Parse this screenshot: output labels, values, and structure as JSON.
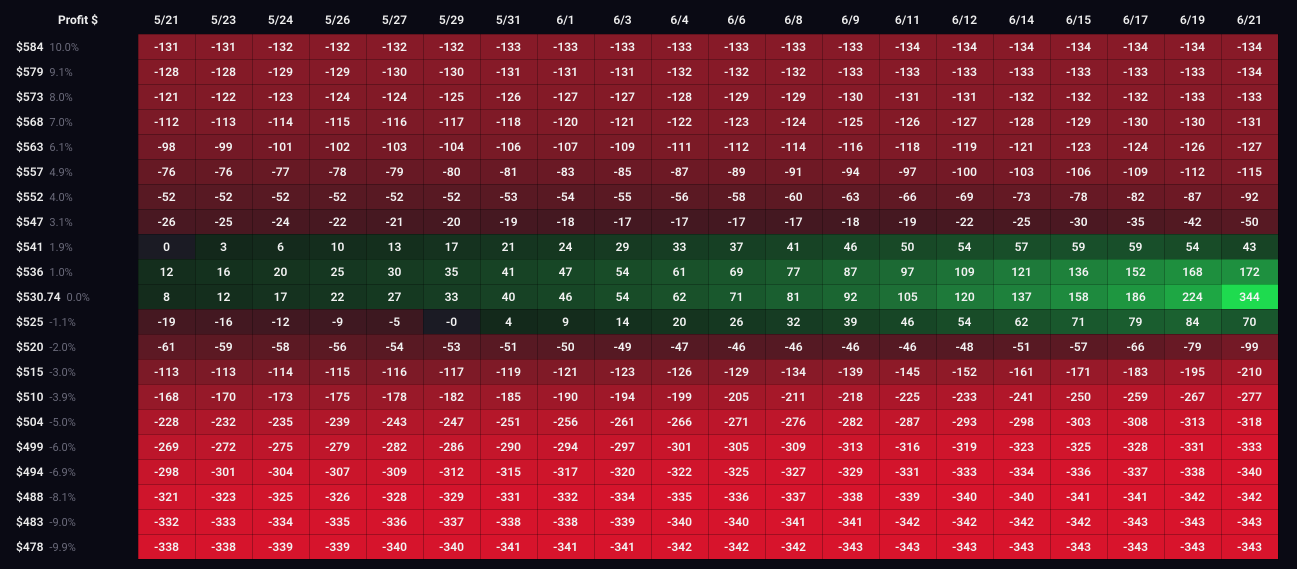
{
  "header": {
    "left_label": "Profit $",
    "dates": [
      "5/21",
      "5/23",
      "5/24",
      "5/26",
      "5/27",
      "5/29",
      "5/31",
      "6/1",
      "6/3",
      "6/4",
      "6/6",
      "6/8",
      "6/9",
      "6/11",
      "6/12",
      "6/14",
      "6/15",
      "6/17",
      "6/19",
      "6/21"
    ]
  },
  "leftcol": [
    {
      "price": "$584",
      "pct": "10.0%"
    },
    {
      "price": "$579",
      "pct": "9.1%"
    },
    {
      "price": "$573",
      "pct": "8.0%"
    },
    {
      "price": "$568",
      "pct": "7.0%"
    },
    {
      "price": "$563",
      "pct": "6.1%"
    },
    {
      "price": "$557",
      "pct": "4.9%"
    },
    {
      "price": "$552",
      "pct": "4.0%"
    },
    {
      "price": "$547",
      "pct": "3.1%"
    },
    {
      "price": "$541",
      "pct": "1.9%"
    },
    {
      "price": "$536",
      "pct": "1.0%"
    },
    {
      "price": "$530.74",
      "pct": "0.0%"
    },
    {
      "price": "$525",
      "pct": "-1.1%"
    },
    {
      "price": "$520",
      "pct": "-2.0%"
    },
    {
      "price": "$515",
      "pct": "-3.0%"
    },
    {
      "price": "$510",
      "pct": "-3.9%"
    },
    {
      "price": "$504",
      "pct": "-5.0%"
    },
    {
      "price": "$499",
      "pct": "-6.0%"
    },
    {
      "price": "$494",
      "pct": "-6.9%"
    },
    {
      "price": "$488",
      "pct": "-8.1%"
    },
    {
      "price": "$483",
      "pct": "-9.0%"
    },
    {
      "price": "$478",
      "pct": "-9.9%"
    }
  ],
  "grid": [
    [
      -131,
      -131,
      -132,
      -132,
      -132,
      -132,
      -133,
      -133,
      -133,
      -133,
      -133,
      -133,
      -133,
      -134,
      -134,
      -134,
      -134,
      -134,
      -134,
      -134
    ],
    [
      -128,
      -128,
      -129,
      -129,
      -130,
      -130,
      -131,
      -131,
      -131,
      -132,
      -132,
      -132,
      -133,
      -133,
      -133,
      -133,
      -133,
      -133,
      -133,
      -134
    ],
    [
      -121,
      -122,
      -123,
      -124,
      -124,
      -125,
      -126,
      -127,
      -127,
      -128,
      -129,
      -129,
      -130,
      -131,
      -131,
      -132,
      -132,
      -132,
      -133,
      -133
    ],
    [
      -112,
      -113,
      -114,
      -115,
      -116,
      -117,
      -118,
      -120,
      -121,
      -122,
      -123,
      -124,
      -125,
      -126,
      -127,
      -128,
      -129,
      -130,
      -130,
      -131
    ],
    [
      -98,
      -99,
      -101,
      -102,
      -103,
      -104,
      -106,
      -107,
      -109,
      -111,
      -112,
      -114,
      -116,
      -118,
      -119,
      -121,
      -123,
      -124,
      -126,
      -127
    ],
    [
      -76,
      -76,
      -77,
      -78,
      -79,
      -80,
      -81,
      -83,
      -85,
      -87,
      -89,
      -91,
      -94,
      -97,
      -100,
      -103,
      -106,
      -109,
      -112,
      -115
    ],
    [
      -52,
      -52,
      -52,
      -52,
      -52,
      -52,
      -53,
      -54,
      -55,
      -56,
      -58,
      -60,
      -63,
      -66,
      -69,
      -73,
      -78,
      -82,
      -87,
      -92
    ],
    [
      -26,
      -25,
      -24,
      -22,
      -21,
      -20,
      -19,
      -18,
      -17,
      -17,
      -17,
      -17,
      -18,
      -19,
      -22,
      -25,
      -30,
      -35,
      -42,
      -50
    ],
    [
      0,
      3,
      6,
      10,
      13,
      17,
      21,
      24,
      29,
      33,
      37,
      41,
      46,
      50,
      54,
      57,
      59,
      59,
      54,
      43
    ],
    [
      12,
      16,
      20,
      25,
      30,
      35,
      41,
      47,
      54,
      61,
      69,
      77,
      87,
      97,
      109,
      121,
      136,
      152,
      168,
      172
    ],
    [
      8,
      12,
      17,
      22,
      27,
      33,
      40,
      46,
      54,
      62,
      71,
      81,
      92,
      105,
      120,
      137,
      158,
      186,
      224,
      344
    ],
    [
      -19,
      -16,
      -12,
      -9,
      -5,
      "-0",
      4,
      9,
      14,
      20,
      26,
      32,
      39,
      46,
      54,
      62,
      71,
      79,
      84,
      70
    ],
    [
      -61,
      -59,
      -58,
      -56,
      -54,
      -53,
      -51,
      -50,
      -49,
      -47,
      -46,
      -46,
      -46,
      -46,
      -48,
      -51,
      -57,
      -66,
      -79,
      -99
    ],
    [
      -113,
      -113,
      -114,
      -115,
      -116,
      -117,
      -119,
      -121,
      -123,
      -126,
      -129,
      -134,
      -139,
      -145,
      -152,
      -161,
      -171,
      -183,
      -195,
      -210
    ],
    [
      -168,
      -170,
      -173,
      -175,
      -178,
      -182,
      -185,
      -190,
      -194,
      -199,
      -205,
      -211,
      -218,
      -225,
      -233,
      -241,
      -250,
      -259,
      -267,
      -277
    ],
    [
      -228,
      -232,
      -235,
      -239,
      -243,
      -247,
      -251,
      -256,
      -261,
      -266,
      -271,
      -276,
      -282,
      -287,
      -293,
      -298,
      -303,
      -308,
      -313,
      -318
    ],
    [
      -269,
      -272,
      -275,
      -279,
      -282,
      -286,
      -290,
      -294,
      -297,
      -301,
      -305,
      -309,
      -313,
      -316,
      -319,
      -323,
      -325,
      -328,
      -331,
      -333
    ],
    [
      -298,
      -301,
      -304,
      -307,
      -309,
      -312,
      -315,
      -317,
      -320,
      -322,
      -325,
      -327,
      -329,
      -331,
      -333,
      -334,
      -336,
      -337,
      -338,
      -340
    ],
    [
      -321,
      -323,
      -325,
      -326,
      -328,
      -329,
      -331,
      -332,
      -334,
      -335,
      -336,
      -337,
      -338,
      -339,
      -340,
      -340,
      -341,
      -341,
      -342,
      -342
    ],
    [
      -332,
      -333,
      -334,
      -335,
      -336,
      -337,
      -338,
      -338,
      -339,
      -340,
      -340,
      -341,
      -341,
      -342,
      -342,
      -342,
      -342,
      -343,
      -343,
      -343
    ],
    [
      -338,
      -338,
      -339,
      -339,
      -340,
      -340,
      -341,
      -341,
      -341,
      -342,
      -342,
      -342,
      -343,
      -343,
      -343,
      -343,
      -343,
      -343,
      -343,
      -343
    ]
  ],
  "style": {
    "type": "heatmap-table",
    "background_color": "#0a0a14",
    "cell_text_color": "#f2f2f2",
    "leftcol_price_color": "#eaeaea",
    "leftcol_pct_color": "#6a6a7a",
    "cell_font_size": 12,
    "neg_color_floor_value": -344,
    "pos_color_ceiling_value": 344,
    "neg_ramp": {
      "dark": "#3a1820",
      "mid": "#8a1a28",
      "bright": "#d8142c"
    },
    "pos_ramp": {
      "dark": "#13261a",
      "mid": "#1e7a3a",
      "bright": "#1edb4f"
    },
    "neutral_color": "#1b1b24"
  }
}
